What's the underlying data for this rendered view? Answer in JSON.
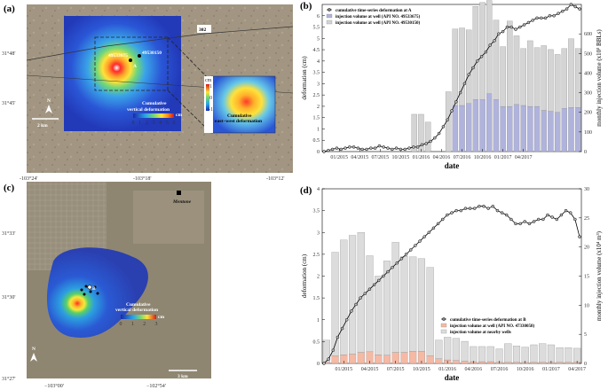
{
  "panel_a": {
    "label": "(a)",
    "lat_ticks": [
      "31°48'",
      "31°45'"
    ],
    "lon_ticks": [
      "-103°24'",
      "-103°18'",
      "-103°12'"
    ],
    "road": "302",
    "well1": "49533675",
    "well2": "49530150",
    "point": "A",
    "scale": "2 km",
    "north": "N",
    "colorbar_title": "Cumulative vertical deformation",
    "colorbar_ticks": [
      "0",
      "1",
      "2",
      "3",
      "4",
      "5",
      "6"
    ],
    "colorbar_unit": "cm",
    "inset_title": "Cumulative east-west deformation",
    "inset_ticks": [
      "-1",
      "0",
      "1"
    ],
    "inset_unit": "cm"
  },
  "panel_c": {
    "label": "(c)",
    "lat_ticks": [
      "31°33'",
      "31°30'",
      "31°27'"
    ],
    "lon_ticks": [
      "−103°00'",
      "−102°54'"
    ],
    "town": "Mentone",
    "point": "B",
    "scale": "3 km",
    "north": "N",
    "colorbar_title": "Cumulative vertical deformation",
    "colorbar_ticks": [
      "0",
      "1",
      "2",
      "3"
    ],
    "colorbar_unit": "cm"
  },
  "chart_data": [
    {
      "panel": "(b)",
      "type": "bar+line",
      "xlabel": "date",
      "ylabel_left": "deformation (cm)",
      "ylabel_right": "monthly injection volume (x10³ BBLs)",
      "ylim_left": [
        0,
        6.5
      ],
      "ylim_right": [
        0,
        750
      ],
      "yticks_left": [
        "0",
        "0.5",
        "1",
        "1.5",
        "2",
        "2.5",
        "3",
        "3.5",
        "4",
        "4.5",
        "5",
        "5.5",
        "6"
      ],
      "yticks_right": [
        "0",
        "100",
        "200",
        "300",
        "400",
        "500",
        "600"
      ],
      "xticks": [
        "01/2015",
        "04/2015",
        "07/2015",
        "10/2015",
        "01/2016",
        "04/2016",
        "07/2016",
        "10/2016",
        "01/2017",
        "04/2017"
      ],
      "legend": [
        "cumulative time-series deformation at A",
        "injection volume at well (API NO. 49533675)",
        "injection volume at well (API NO. 49530150)"
      ],
      "bar_series": [
        {
          "name": "injection volume at well (API NO. 49533675)",
          "color": "#b0b3dc",
          "values": [
            0,
            0,
            0,
            0,
            0,
            0,
            0,
            0,
            0,
            0,
            0,
            0,
            0,
            0,
            0,
            0,
            0,
            0,
            0,
            235,
            235,
            245,
            265,
            265,
            295,
            265,
            230,
            230,
            240,
            235,
            230,
            230,
            210,
            205,
            200,
            220,
            225,
            225
          ]
        },
        {
          "name": "injection volume at well (API NO. 49530150)",
          "color": "#d4d4d4",
          "values": [
            0,
            0,
            0,
            0,
            0,
            0,
            0,
            0,
            0,
            0,
            0,
            0,
            0,
            190,
            190,
            150,
            0,
            0,
            305,
            390,
            395,
            375,
            475,
            495,
            475,
            405,
            305,
            435,
            350,
            290,
            335,
            300,
            330,
            315,
            295,
            305,
            350,
            300
          ]
        }
      ],
      "bar_months": [
        "11/2014",
        "12/2014",
        "01/2015",
        "02/2015",
        "03/2015",
        "04/2015",
        "05/2015",
        "06/2015",
        "07/2015",
        "08/2015",
        "09/2015",
        "10/2015",
        "11/2015",
        "12/2015",
        "01/2016",
        "02/2016",
        "03/2016",
        "04/2016",
        "05/2016",
        "06/2016",
        "07/2016",
        "08/2016",
        "09/2016",
        "10/2016",
        "11/2016",
        "12/2016",
        "01/2017",
        "02/2017",
        "03/2017",
        "04/2017",
        "05/2017",
        "06/2017",
        "07/2017",
        "08/2017",
        "09/2017",
        "10/2017",
        "11/2017",
        "12/2017"
      ],
      "line_series": {
        "name": "cumulative time-series deformation at A",
        "values": [
          0,
          0.05,
          0.1,
          0.15,
          0.1,
          0.15,
          0.2,
          0.2,
          0.15,
          0.1,
          0.1,
          0.15,
          0.15,
          0.25,
          0.2,
          0.15,
          0.1,
          0.15,
          0.1,
          0.1,
          0.15,
          0.2,
          0.2,
          0.3,
          0.35,
          0.45,
          0.6,
          0.8,
          1.1,
          1.4,
          1.8,
          2.2,
          2.6,
          3.0,
          3.4,
          3.7,
          4.0,
          4.2,
          4.4,
          4.7,
          4.9,
          5.2,
          5.3,
          5.5,
          5.5,
          5.4,
          5.5,
          5.6,
          5.7,
          5.8,
          5.9,
          5.9,
          5.9,
          6.0,
          6.0,
          6.1,
          6.2,
          6.3,
          6.5,
          6.4,
          6.3
        ]
      }
    },
    {
      "panel": "(d)",
      "type": "bar+line",
      "xlabel": "date",
      "ylabel_left": "deformation (cm)",
      "ylabel_right": "monthly injection volume (x10⁴ m³)",
      "ylim_left": [
        0,
        4
      ],
      "ylim_right": [
        0,
        30
      ],
      "yticks_left": [
        "0",
        "0.5",
        "1",
        "1.5",
        "2",
        "2.5",
        "3",
        "3.5",
        "4"
      ],
      "yticks_right": [
        "0",
        "5",
        "10",
        "15",
        "20",
        "25",
        "30"
      ],
      "xticks": [
        "01/2015",
        "04/2015",
        "07/2015",
        "10/2015",
        "01/2016",
        "04/2016",
        "07/2016",
        "10/2016",
        "01/2017",
        "04/2017"
      ],
      "legend": [
        "cumulative time-series deformation at B",
        "injection volume at well (API NO. 47330058)",
        "injection volume at nearby wells"
      ],
      "bar_series": [
        {
          "name": "injection volume at well (API NO. 47330058)",
          "color": "#f5b9a4",
          "values": [
            0.2,
            1.3,
            1.5,
            1.6,
            1.9,
            2.0,
            1.5,
            1.4,
            1.9,
            1.9,
            2.1,
            2.1,
            1.3,
            0.8,
            0.6,
            0.5,
            0.4,
            0.3,
            0.3,
            0.3,
            0.2,
            0.2,
            0.2,
            0.2,
            0.2,
            0.2,
            0.2,
            0.2,
            0.2,
            0.2
          ]
        },
        {
          "name": "injection volume at nearby wells",
          "color": "#dcdcdc",
          "values": [
            3.8,
            17.8,
            19.7,
            20.4,
            20.6,
            16.5,
            13.5,
            16.2,
            18.9,
            16.5,
            16.2,
            15.9,
            15.2,
            3.2,
            3.9,
            3.8,
            3.4,
            2.6,
            2.6,
            2.6,
            2.3,
            3.2,
            2.8,
            2.6,
            3.0,
            3.2,
            3.0,
            2.5,
            2.5,
            2.4
          ]
        }
      ],
      "bar_months": [
        "11/2014",
        "12/2014",
        "01/2015",
        "02/2015",
        "03/2015",
        "04/2015",
        "05/2015",
        "06/2015",
        "07/2015",
        "08/2015",
        "09/2015",
        "10/2015",
        "11/2015",
        "12/2015",
        "01/2016",
        "02/2016",
        "03/2016",
        "04/2016",
        "05/2016",
        "06/2016",
        "07/2016",
        "08/2016",
        "09/2016",
        "10/2016",
        "11/2016",
        "12/2016",
        "01/2017",
        "02/2017",
        "03/2017",
        "04/2017"
      ],
      "line_series": {
        "name": "cumulative time-series deformation at B",
        "values": [
          0,
          0.1,
          0.3,
          0.6,
          0.8,
          1.0,
          1.2,
          1.35,
          1.5,
          1.6,
          1.7,
          1.8,
          1.9,
          2.0,
          2.1,
          2.2,
          2.3,
          2.4,
          2.5,
          2.6,
          2.7,
          2.8,
          2.9,
          3.0,
          3.1,
          3.2,
          3.3,
          3.4,
          3.45,
          3.5,
          3.5,
          3.55,
          3.55,
          3.55,
          3.6,
          3.6,
          3.55,
          3.6,
          3.5,
          3.45,
          3.4,
          3.3,
          3.2,
          3.2,
          3.25,
          3.2,
          3.25,
          3.3,
          3.3,
          3.4,
          3.35,
          3.3,
          3.4,
          3.5,
          3.45,
          3.3,
          2.9
        ]
      }
    }
  ]
}
